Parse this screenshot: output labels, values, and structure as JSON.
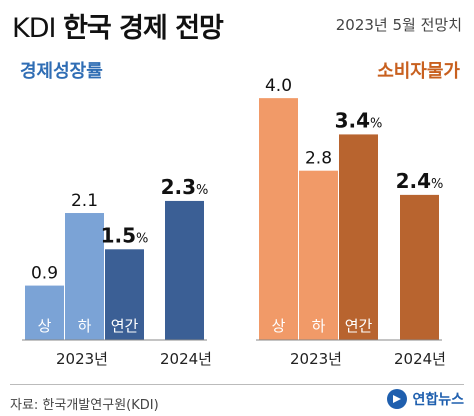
{
  "header": {
    "prefix": "KDI",
    "title": "한국 경제 전망",
    "subtitle": "2023년 5월 전망치"
  },
  "source": "자료: 한국개발연구원(KDI)",
  "logo_text": "연합뉴스",
  "colors": {
    "gdp_light": "#7ba3d6",
    "gdp_dark": "#3b5f95",
    "cpi_light": "#f19a68",
    "cpi_dark": "#b8642f",
    "gdp_title": "#2f6db4",
    "cpi_title": "#c8601f"
  },
  "chart_data": [
    {
      "type": "bar",
      "title": "경제성장률",
      "unit": "%",
      "categories": [
        "상",
        "하",
        "연간",
        "2024년"
      ],
      "values": [
        0.9,
        2.1,
        1.5,
        2.3
      ],
      "value_labels": [
        "0.9",
        "2.1",
        "1.5",
        "2.3"
      ],
      "value_label_units": [
        "",
        "",
        "%",
        "%"
      ],
      "groups": [
        {
          "label": "2023년",
          "members": [
            0,
            1,
            2
          ]
        },
        {
          "label": "2024년",
          "members": [
            3
          ]
        }
      ],
      "inner_labels": [
        "상",
        "하",
        "연간",
        ""
      ],
      "ylim": [
        0,
        4.3
      ]
    },
    {
      "type": "bar",
      "title": "소비자물가",
      "unit": "%",
      "categories": [
        "상",
        "하",
        "연간",
        "2024년"
      ],
      "values": [
        4.0,
        2.8,
        3.4,
        2.4
      ],
      "value_labels": [
        "4.0",
        "2.8",
        "3.4",
        "2.4"
      ],
      "value_label_units": [
        "",
        "",
        "%",
        "%"
      ],
      "groups": [
        {
          "label": "2023년",
          "members": [
            0,
            1,
            2
          ]
        },
        {
          "label": "2024년",
          "members": [
            3
          ]
        }
      ],
      "inner_labels": [
        "상",
        "하",
        "연간",
        ""
      ],
      "ylim": [
        0,
        4.3
      ]
    }
  ]
}
